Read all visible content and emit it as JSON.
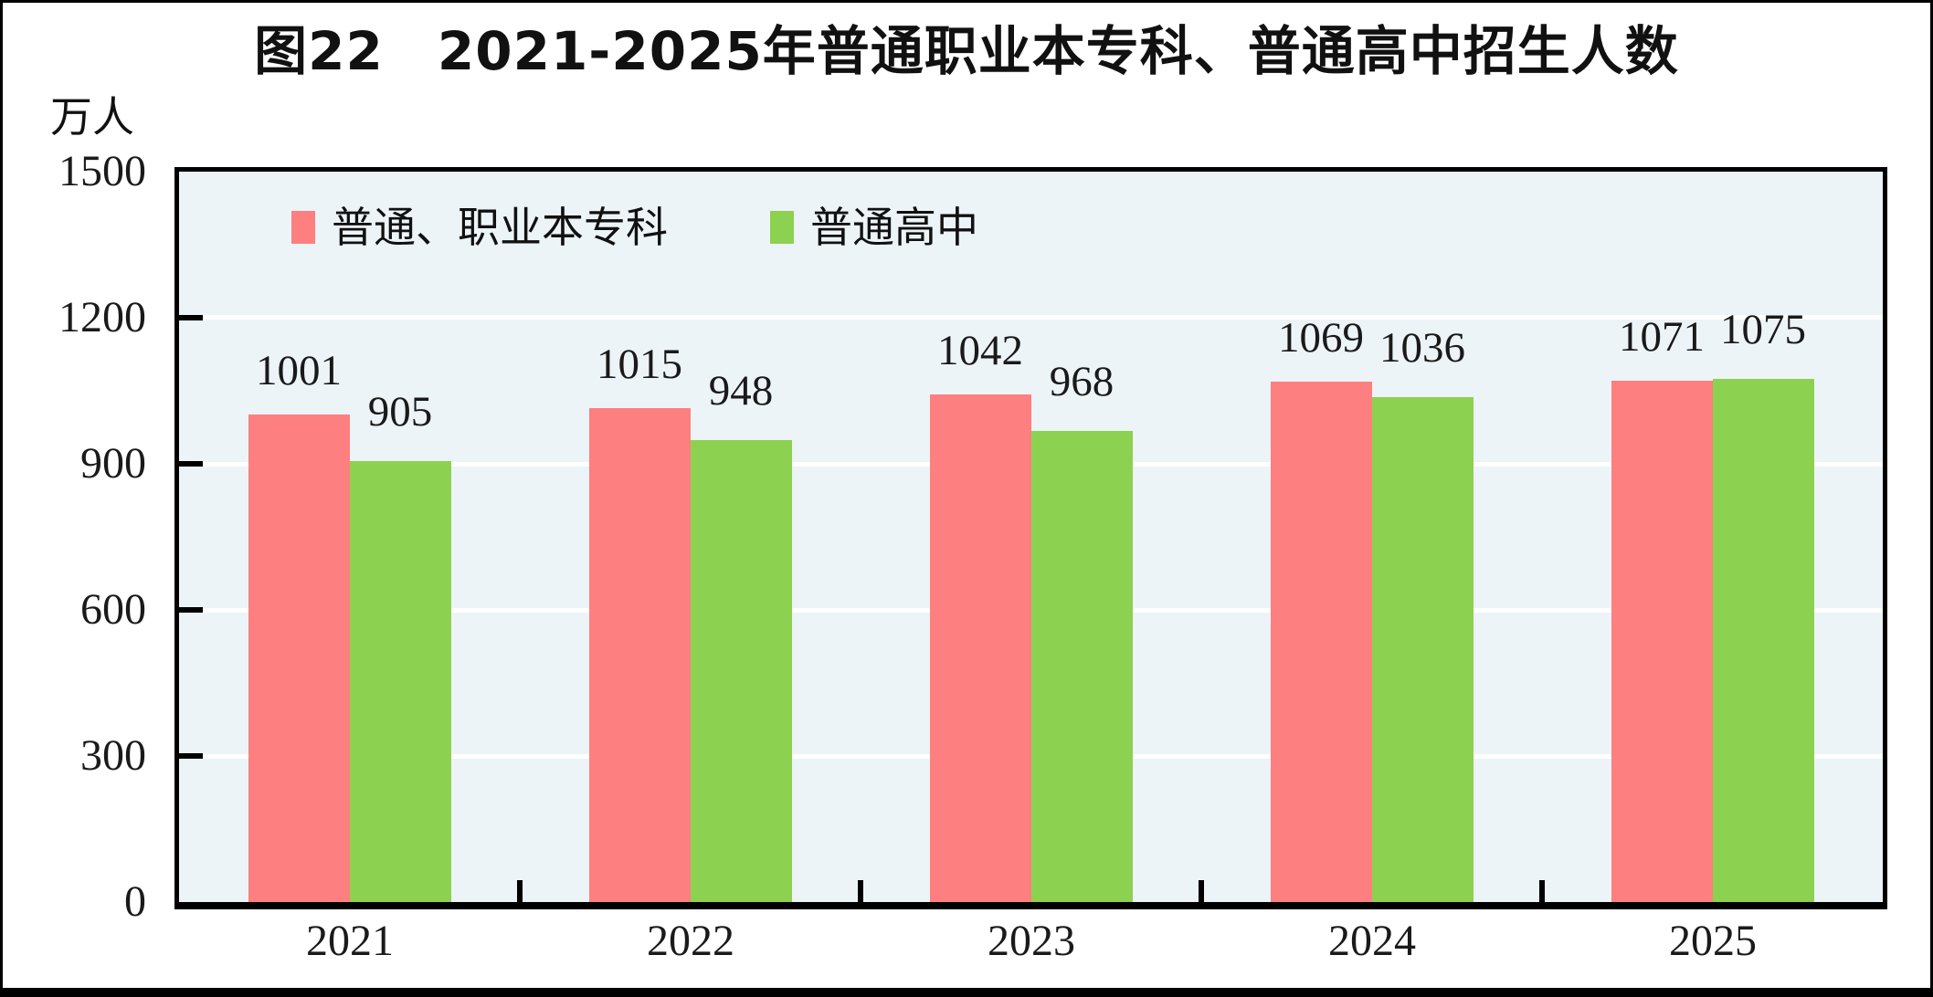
{
  "chart_data": {
    "type": "bar",
    "title": "图22　2021-2025年普通职业本专科、普通高中招生人数",
    "unit_label": "万人",
    "categories": [
      "2021",
      "2022",
      "2023",
      "2024",
      "2025"
    ],
    "series": [
      {
        "name": "普通、职业本专科",
        "color": "#fd7f7f",
        "values": [
          1001,
          1015,
          1042,
          1069,
          1071
        ]
      },
      {
        "name": "普通高中",
        "color": "#8dd150",
        "values": [
          905,
          948,
          968,
          1036,
          1075
        ]
      }
    ],
    "ylim": [
      0,
      1500
    ],
    "yticks": [
      0,
      300,
      600,
      900,
      1200,
      1500
    ],
    "grid": true,
    "gridline_color": "#ffffff",
    "plot_background": "#edf4f8",
    "legend_position": "top-left-inside",
    "value_labels": true
  }
}
